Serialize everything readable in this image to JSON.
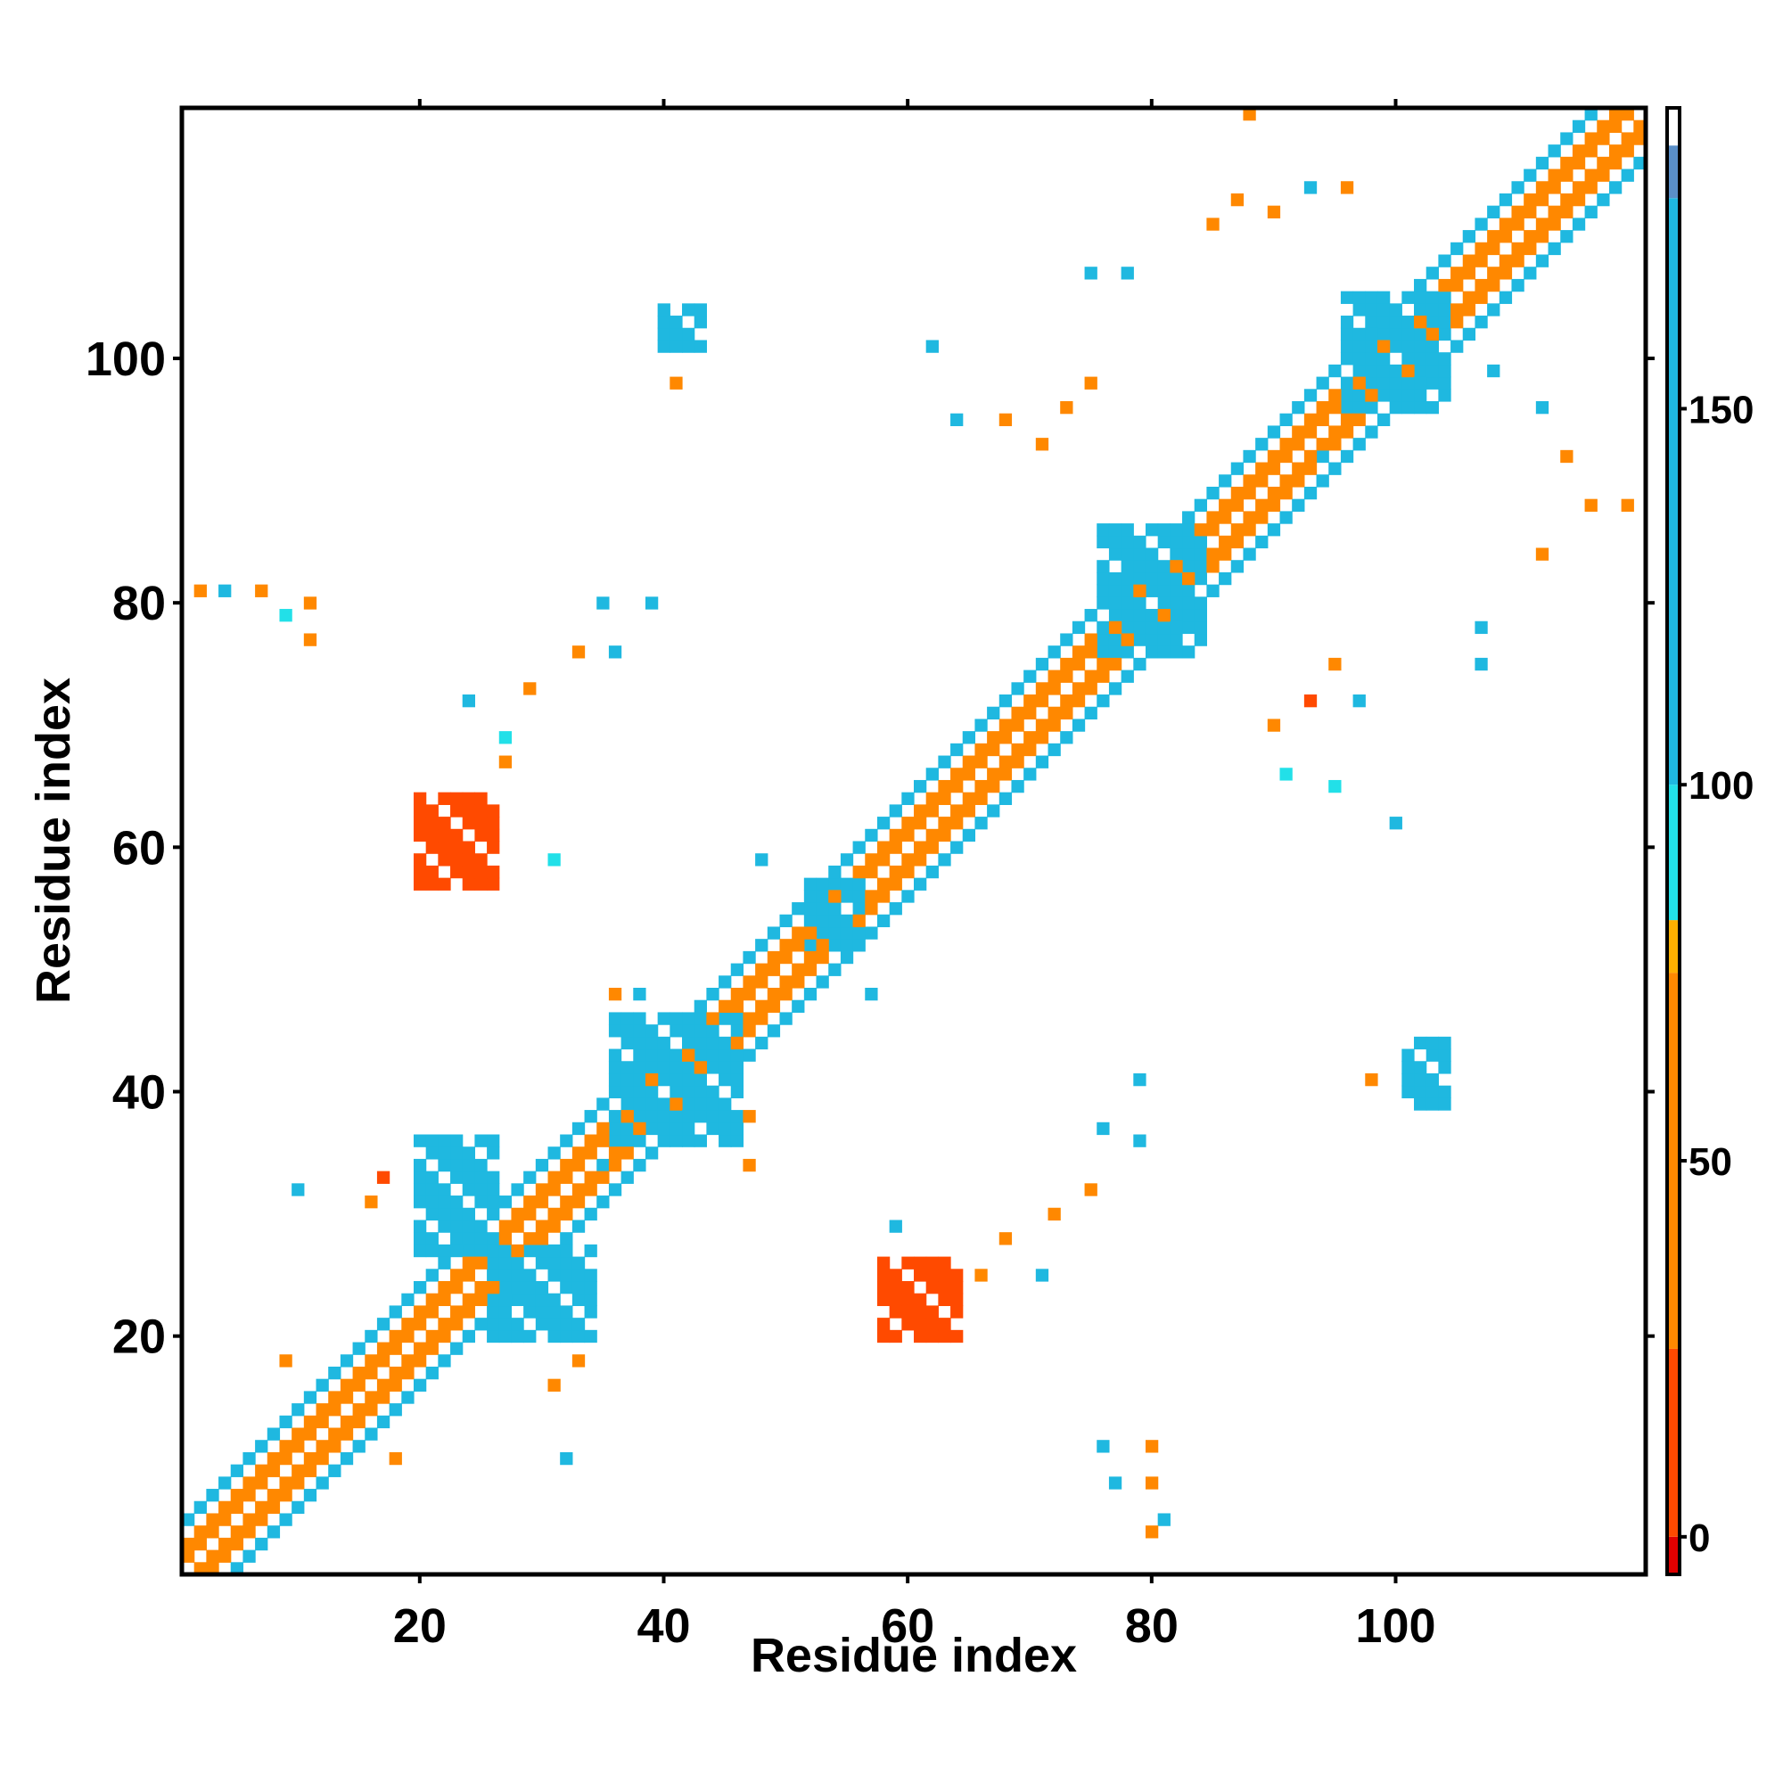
{
  "chart_data": {
    "type": "heatmap",
    "title": "",
    "xlabel": "Residue index",
    "ylabel": "Residue index",
    "xlim": [
      1,
      120
    ],
    "ylim": [
      1,
      120
    ],
    "x_ticks": [
      20,
      40,
      60,
      80,
      100
    ],
    "y_ticks": [
      20,
      40,
      60,
      80,
      100
    ],
    "grid": false,
    "colorbar": {
      "ticks": [
        0,
        50,
        100,
        150
      ],
      "range": [
        -5,
        190
      ],
      "bands": [
        {
          "from": -5,
          "to": 0,
          "color": "#e00000"
        },
        {
          "from": 0,
          "to": 25,
          "color": "#ff4a00"
        },
        {
          "from": 25,
          "to": 75,
          "color": "#ff8800"
        },
        {
          "from": 75,
          "to": 82,
          "color": "#ffb000"
        },
        {
          "from": 82,
          "to": 100,
          "color": "#22e0e8"
        },
        {
          "from": 100,
          "to": 178,
          "color": "#1fb8e0"
        },
        {
          "from": 178,
          "to": 185,
          "color": "#5a8fc8"
        },
        {
          "from": 185,
          "to": 190,
          "color": "#ffffff"
        }
      ]
    },
    "contact_patches": [
      {
        "x": [
          58,
          64
        ],
        "y": [
          20,
          26
        ],
        "value": 15
      },
      {
        "x": [
          20,
          26
        ],
        "y": [
          57,
          64
        ],
        "value": 15
      },
      {
        "x": [
          26,
          34
        ],
        "y": [
          20,
          27
        ],
        "value": 175
      },
      {
        "x": [
          20,
          26
        ],
        "y": [
          27,
          36
        ],
        "value": 175
      },
      {
        "x": [
          40,
          43
        ],
        "y": [
          101,
          104
        ],
        "value": 120
      },
      {
        "x": [
          101,
          104
        ],
        "y": [
          39,
          44
        ],
        "value": 120
      },
      {
        "x": [
          96,
          104
        ],
        "y": [
          96,
          105
        ],
        "value": 170
      },
      {
        "x": [
          76,
          84
        ],
        "y": [
          76,
          86
        ],
        "value": 170
      },
      {
        "x": [
          52,
          56
        ],
        "y": [
          52,
          57
        ],
        "value": 150
      },
      {
        "x": [
          36,
          46
        ],
        "y": [
          36,
          46
        ],
        "value": 100
      }
    ],
    "sparse_contacts": [
      {
        "x": 2,
        "y": 81,
        "value": 50
      },
      {
        "x": 4,
        "y": 81,
        "value": 110
      },
      {
        "x": 7,
        "y": 81,
        "value": 50
      },
      {
        "x": 9,
        "y": 79,
        "value": 95
      },
      {
        "x": 11,
        "y": 80,
        "value": 40
      },
      {
        "x": 11,
        "y": 77,
        "value": 40
      },
      {
        "x": 33,
        "y": 76,
        "value": 40
      },
      {
        "x": 29,
        "y": 73,
        "value": 40
      },
      {
        "x": 24,
        "y": 72,
        "value": 130
      },
      {
        "x": 27,
        "y": 69,
        "value": 95
      },
      {
        "x": 27,
        "y": 67,
        "value": 40
      },
      {
        "x": 31,
        "y": 59,
        "value": 95
      },
      {
        "x": 35,
        "y": 80,
        "value": 100
      },
      {
        "x": 39,
        "y": 80,
        "value": 130
      },
      {
        "x": 36,
        "y": 76,
        "value": 130
      },
      {
        "x": 41,
        "y": 98,
        "value": 40
      },
      {
        "x": 62,
        "y": 101,
        "value": 130
      },
      {
        "x": 64,
        "y": 95,
        "value": 100
      },
      {
        "x": 68,
        "y": 95,
        "value": 40
      },
      {
        "x": 71,
        "y": 93,
        "value": 30
      },
      {
        "x": 73,
        "y": 96,
        "value": 40
      },
      {
        "x": 75,
        "y": 98,
        "value": 40
      },
      {
        "x": 75,
        "y": 107,
        "value": 100
      },
      {
        "x": 78,
        "y": 107,
        "value": 100
      },
      {
        "x": 90,
        "y": 112,
        "value": 40
      },
      {
        "x": 93,
        "y": 114,
        "value": 110
      },
      {
        "x": 96,
        "y": 114,
        "value": 40
      },
      {
        "x": 88,
        "y": 120,
        "value": 60
      },
      {
        "x": 87,
        "y": 113,
        "value": 40
      },
      {
        "x": 85,
        "y": 111,
        "value": 40
      },
      {
        "x": 108,
        "y": 99,
        "value": 110
      },
      {
        "x": 112,
        "y": 96,
        "value": 130
      },
      {
        "x": 114,
        "y": 92,
        "value": 40
      },
      {
        "x": 116,
        "y": 88,
        "value": 50
      },
      {
        "x": 119,
        "y": 88,
        "value": 60
      },
      {
        "x": 112,
        "y": 84,
        "value": 40
      },
      {
        "x": 107,
        "y": 78,
        "value": 110
      },
      {
        "x": 107,
        "y": 75,
        "value": 110
      },
      {
        "x": 90,
        "y": 70,
        "value": 40
      },
      {
        "x": 93,
        "y": 72,
        "value": 20
      },
      {
        "x": 95,
        "y": 75,
        "value": 60
      },
      {
        "x": 97,
        "y": 72,
        "value": 110
      },
      {
        "x": 91,
        "y": 66,
        "value": 95
      },
      {
        "x": 95,
        "y": 65,
        "value": 95
      },
      {
        "x": 100,
        "y": 62,
        "value": 130
      },
      {
        "x": 98,
        "y": 41,
        "value": 40
      },
      {
        "x": 79,
        "y": 41,
        "value": 130
      },
      {
        "x": 76,
        "y": 37,
        "value": 130
      },
      {
        "x": 79,
        "y": 36,
        "value": 130
      },
      {
        "x": 75,
        "y": 32,
        "value": 60
      },
      {
        "x": 72,
        "y": 30,
        "value": 40
      },
      {
        "x": 68,
        "y": 28,
        "value": 40
      },
      {
        "x": 66,
        "y": 25,
        "value": 60
      },
      {
        "x": 63,
        "y": 26,
        "value": 110
      },
      {
        "x": 71,
        "y": 25,
        "value": 110
      },
      {
        "x": 59,
        "y": 29,
        "value": 110
      },
      {
        "x": 76,
        "y": 11,
        "value": 100
      },
      {
        "x": 80,
        "y": 11,
        "value": 60
      },
      {
        "x": 77,
        "y": 8,
        "value": 110
      },
      {
        "x": 80,
        "y": 8,
        "value": 40
      },
      {
        "x": 81,
        "y": 5,
        "value": 100
      },
      {
        "x": 80,
        "y": 4,
        "value": 40
      },
      {
        "x": 32,
        "y": 10,
        "value": 100
      },
      {
        "x": 18,
        "y": 10,
        "value": 40
      },
      {
        "x": 9,
        "y": 18,
        "value": 40
      },
      {
        "x": 31,
        "y": 16,
        "value": 40
      },
      {
        "x": 33,
        "y": 18,
        "value": 40
      },
      {
        "x": 35,
        "y": 34,
        "value": 110
      },
      {
        "x": 16,
        "y": 31,
        "value": 40
      },
      {
        "x": 17,
        "y": 33,
        "value": 20
      },
      {
        "x": 10,
        "y": 32,
        "value": 130
      },
      {
        "x": 47,
        "y": 34,
        "value": 40
      },
      {
        "x": 47,
        "y": 38,
        "value": 40
      },
      {
        "x": 36,
        "y": 48,
        "value": 40
      },
      {
        "x": 38,
        "y": 48,
        "value": 110
      },
      {
        "x": 57,
        "y": 48,
        "value": 130
      },
      {
        "x": 48,
        "y": 59,
        "value": 130
      },
      {
        "x": 94,
        "y": 92,
        "value": 110
      }
    ]
  }
}
